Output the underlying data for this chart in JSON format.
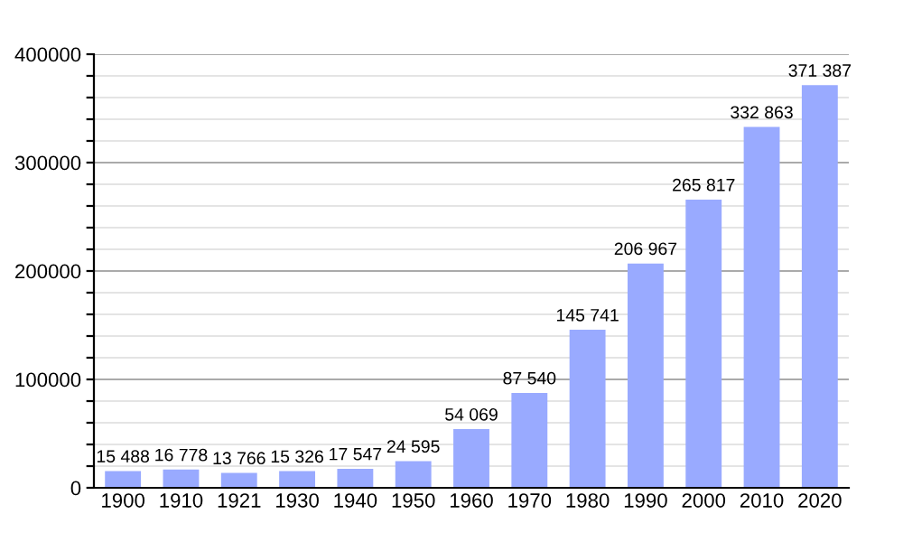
{
  "chart_data": {
    "type": "bar",
    "categories": [
      "1900",
      "1910",
      "1921",
      "1930",
      "1940",
      "1950",
      "1960",
      "1970",
      "1980",
      "1990",
      "2000",
      "2010",
      "2020"
    ],
    "values": [
      15488,
      16778,
      13766,
      15326,
      17547,
      24595,
      54069,
      87540,
      145741,
      206967,
      265817,
      332863,
      371387
    ],
    "value_labels": [
      "15 488",
      "16 778",
      "13 766",
      "15 326",
      "17 547",
      "24 595",
      "54 069",
      "87 540",
      "145 741",
      "206 967",
      "265 817",
      "332 863",
      "371 387"
    ],
    "color": "#99aaff",
    "ylim": [
      0,
      400000
    ],
    "yticks": [
      0,
      {
        "value": 20000,
        "label": null
      },
      {
        "value": 40000,
        "label": null
      },
      {
        "value": 60000,
        "label": null
      },
      {
        "value": 80000,
        "label": null
      },
      100000,
      {
        "value": 120000,
        "label": null
      },
      {
        "value": 140000,
        "label": null
      },
      {
        "value": 160000,
        "label": null
      },
      {
        "value": 180000,
        "label": null
      },
      200000,
      {
        "value": 220000,
        "label": null
      },
      {
        "value": 240000,
        "label": null
      },
      {
        "value": 260000,
        "label": null
      },
      {
        "value": 280000,
        "label": null
      },
      300000,
      {
        "value": 320000,
        "label": null
      },
      {
        "value": 340000,
        "label": null
      },
      {
        "value": 360000,
        "label": null
      },
      {
        "value": 380000,
        "label": null
      },
      400000
    ],
    "grid": "y"
  }
}
